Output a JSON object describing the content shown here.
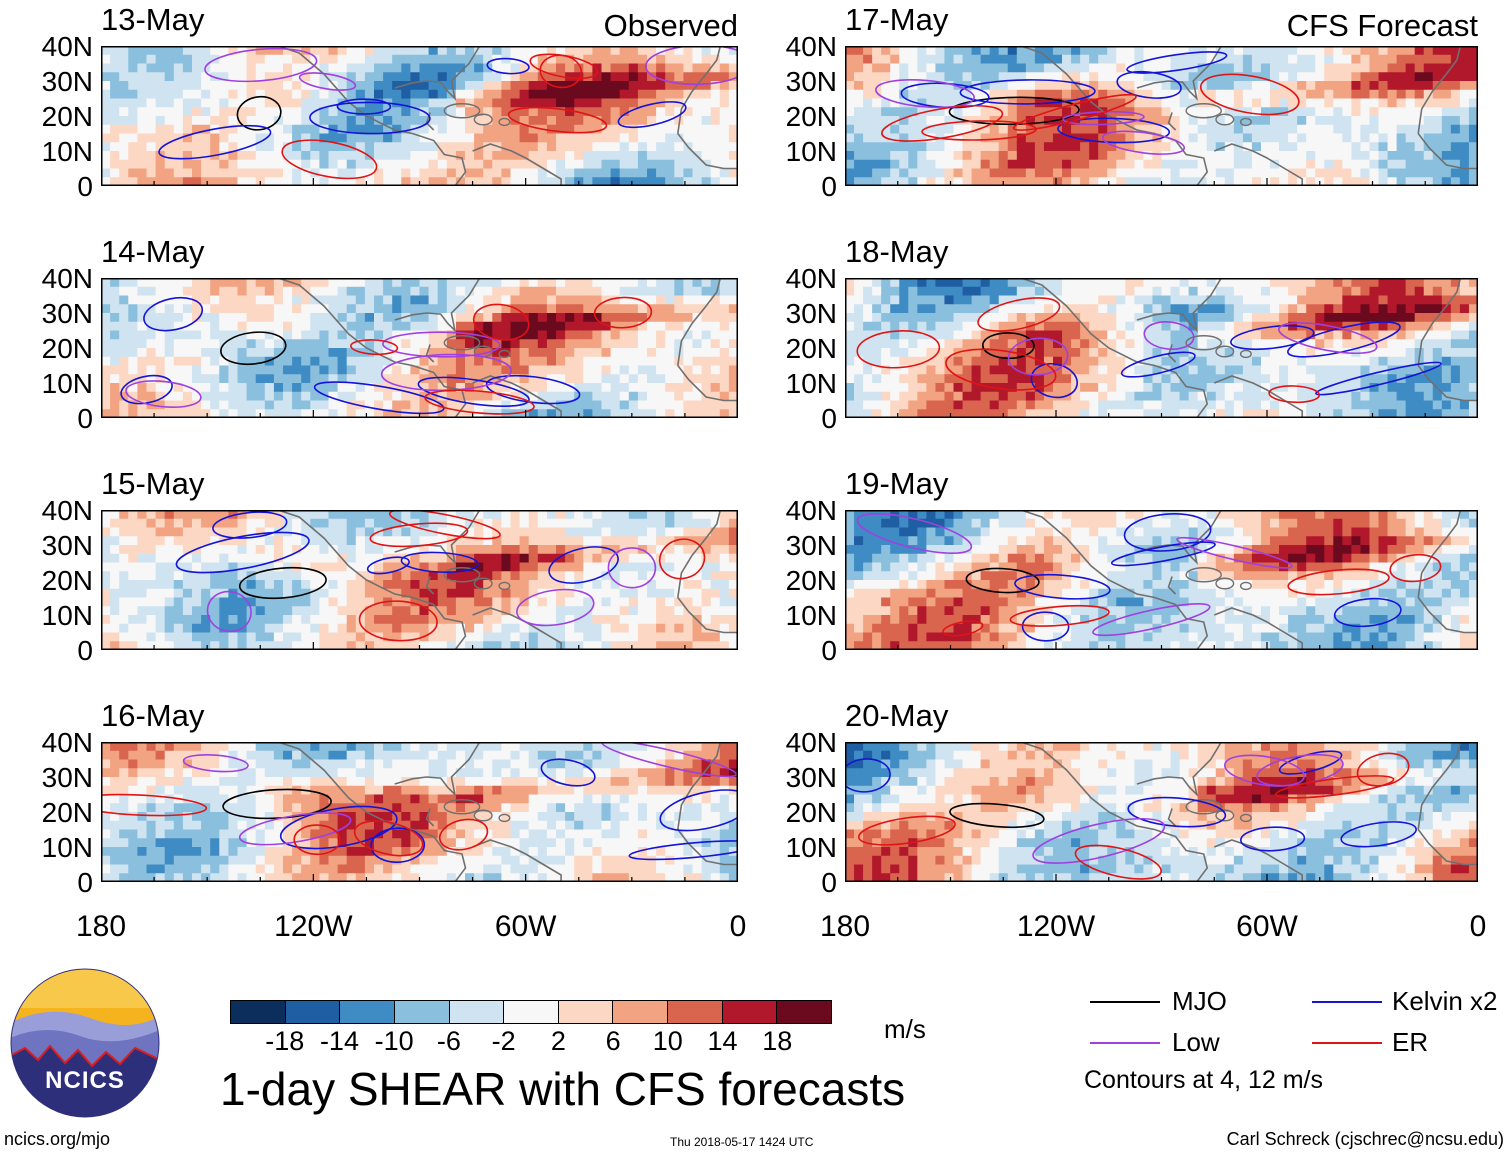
{
  "chart_data": [
    {
      "type": "heatmap",
      "title": "13-May",
      "tag": "Observed",
      "ylabels": [
        "40N",
        "30N",
        "20N",
        "10N",
        "0"
      ],
      "xlim": [
        -180,
        0
      ],
      "ylim": [
        0,
        40
      ],
      "seed": 13
    },
    {
      "type": "heatmap",
      "title": "14-May",
      "tag": "",
      "ylabels": [
        "40N",
        "30N",
        "20N",
        "10N",
        "0"
      ],
      "xlim": [
        -180,
        0
      ],
      "ylim": [
        0,
        40
      ],
      "seed": 14
    },
    {
      "type": "heatmap",
      "title": "15-May",
      "tag": "",
      "ylabels": [
        "40N",
        "30N",
        "20N",
        "10N",
        "0"
      ],
      "xlim": [
        -180,
        0
      ],
      "ylim": [
        0,
        40
      ],
      "seed": 15
    },
    {
      "type": "heatmap",
      "title": "16-May",
      "tag": "",
      "ylabels": [
        "40N",
        "30N",
        "20N",
        "10N",
        "0"
      ],
      "xlim": [
        -180,
        0
      ],
      "ylim": [
        0,
        40
      ],
      "seed": 16
    },
    {
      "type": "heatmap",
      "title": "17-May",
      "tag": "CFS Forecast",
      "ylabels": [
        "40N",
        "30N",
        "20N",
        "10N",
        "0"
      ],
      "xlim": [
        -180,
        0
      ],
      "ylim": [
        0,
        40
      ],
      "seed": 17
    },
    {
      "type": "heatmap",
      "title": "18-May",
      "tag": "",
      "ylabels": [
        "40N",
        "30N",
        "20N",
        "10N",
        "0"
      ],
      "xlim": [
        -180,
        0
      ],
      "ylim": [
        0,
        40
      ],
      "seed": 18
    },
    {
      "type": "heatmap",
      "title": "19-May",
      "tag": "",
      "ylabels": [
        "40N",
        "30N",
        "20N",
        "10N",
        "0"
      ],
      "xlim": [
        -180,
        0
      ],
      "ylim": [
        0,
        40
      ],
      "seed": 19
    },
    {
      "type": "heatmap",
      "title": "20-May",
      "tag": "",
      "ylabels": [
        "40N",
        "30N",
        "20N",
        "10N",
        "0"
      ],
      "xlim": [
        -180,
        0
      ],
      "ylim": [
        0,
        40
      ],
      "seed": 20
    }
  ],
  "xticks": [
    "180",
    "120W",
    "60W",
    "0"
  ],
  "colorbar": {
    "colors": [
      "#0b2e5c",
      "#1f5ea3",
      "#3f8cc4",
      "#8bbfde",
      "#cfe4f0",
      "#f7f7f7",
      "#fcd7c3",
      "#f2a382",
      "#d9654f",
      "#b2182b",
      "#6b0a1e"
    ],
    "ticks": [
      "-18",
      "-14",
      "-10",
      "-6",
      "-2",
      "2",
      "6",
      "10",
      "14",
      "18"
    ],
    "units": "m/s"
  },
  "title": "1-day SHEAR with CFS forecasts",
  "legend": [
    {
      "label": "MJO",
      "color": "#000000"
    },
    {
      "label": "Kelvin x2",
      "color": "#1414d8"
    },
    {
      "label": "Low",
      "color": "#a040e0"
    },
    {
      "label": "ER",
      "color": "#e01414"
    }
  ],
  "contour_note": "Contours at 4, 12 m/s",
  "logo_text": "NCICS",
  "footer": {
    "left": "ncics.org/mjo",
    "center": "Thu 2018-05-17 1424 UTC",
    "right": "Carl Schreck (cjschrec@ncsu.edu)"
  }
}
